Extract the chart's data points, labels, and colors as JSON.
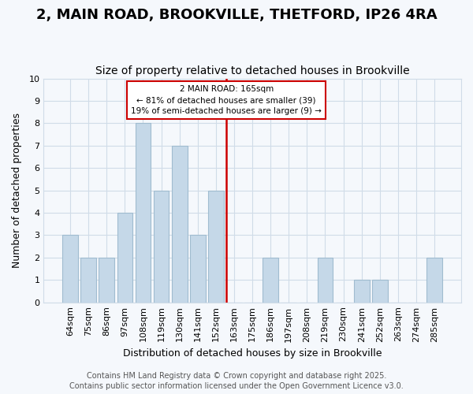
{
  "title": "2, MAIN ROAD, BROOKVILLE, THETFORD, IP26 4RA",
  "subtitle": "Size of property relative to detached houses in Brookville",
  "xlabel": "Distribution of detached houses by size in Brookville",
  "ylabel": "Number of detached properties",
  "bar_labels": [
    "64sqm",
    "75sqm",
    "86sqm",
    "97sqm",
    "108sqm",
    "119sqm",
    "130sqm",
    "141sqm",
    "152sqm",
    "163sqm",
    "175sqm",
    "186sqm",
    "197sqm",
    "208sqm",
    "219sqm",
    "230sqm",
    "241sqm",
    "252sqm",
    "263sqm",
    "274sqm",
    "285sqm"
  ],
  "bar_values": [
    3,
    2,
    2,
    4,
    8,
    5,
    7,
    3,
    5,
    0,
    0,
    2,
    0,
    0,
    2,
    0,
    1,
    1,
    0,
    0,
    2
  ],
  "bar_color": "#c5d8e8",
  "bar_edgecolor": "#a0bcd0",
  "reference_line_index": 9,
  "reference_line_color": "#cc0000",
  "annotation_title": "2 MAIN ROAD: 165sqm",
  "annotation_line1": "← 81% of detached houses are smaller (39)",
  "annotation_line2": "19% of semi-detached houses are larger (9) →",
  "annotation_box_edgecolor": "#cc0000",
  "ylim": [
    0,
    10
  ],
  "yticks": [
    0,
    1,
    2,
    3,
    4,
    5,
    6,
    7,
    8,
    9,
    10
  ],
  "grid_color": "#d0dce8",
  "background_color": "#f5f8fc",
  "footer1": "Contains HM Land Registry data © Crown copyright and database right 2025.",
  "footer2": "Contains public sector information licensed under the Open Government Licence v3.0.",
  "title_fontsize": 13,
  "subtitle_fontsize": 10,
  "xlabel_fontsize": 9,
  "ylabel_fontsize": 9,
  "tick_fontsize": 8,
  "footer_fontsize": 7
}
